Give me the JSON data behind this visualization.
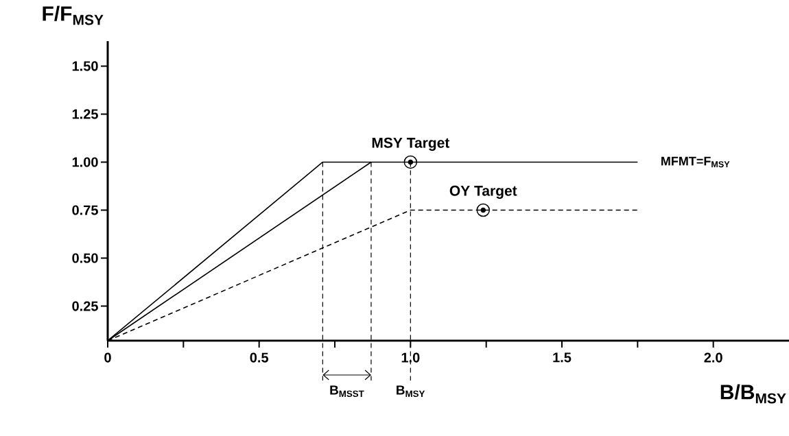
{
  "chart_data": {
    "type": "line",
    "xlabel": "B/B$_{MSY}$",
    "ylabel": "F/F$_{MSY}$",
    "xlim": [
      0,
      2.25
    ],
    "ylim": [
      0.07,
      1.63
    ],
    "xticks": [
      0,
      {
        "value": 0.25,
        "label": null
      },
      0.5,
      {
        "value": 0.75,
        "label": null
      },
      {
        "value": 1.0,
        "label": "1.0"
      },
      {
        "value": 1.25,
        "label": null
      },
      1.5,
      {
        "value": 1.75,
        "label": null
      },
      {
        "value": 2.0,
        "label": "2.0"
      }
    ],
    "yticks": [
      {
        "value": 0.25,
        "label": "0.25"
      },
      {
        "value": 0.5,
        "label": "0.50"
      },
      {
        "value": 0.75,
        "label": "0.75"
      },
      {
        "value": 1.0,
        "label": "1.00"
      },
      {
        "value": 1.25,
        "label": "1.25"
      },
      {
        "value": 1.5,
        "label": "1.50"
      }
    ],
    "series": [
      {
        "type": "line",
        "name": "MFMT=F$_{MSY}$",
        "x": [
          0,
          0.71,
          1.75
        ],
        "values": [
          0.07,
          1.0,
          1.0
        ],
        "color": "#000000",
        "line_style": "solid"
      },
      {
        "type": "line",
        "x": [
          0,
          0.87
        ],
        "values": [
          0.07,
          1.0
        ],
        "color": "#000000",
        "line_style": "solid"
      },
      {
        "type": "line",
        "x": [
          0,
          1.0,
          1.75
        ],
        "values": [
          0.07,
          0.75,
          0.75
        ],
        "color": "#000000",
        "line_style": "dashed"
      },
      {
        "type": "scatter",
        "name": "MSY Target",
        "x": [
          1.0
        ],
        "values": [
          1.0
        ],
        "color": "#000000",
        "marker": "circle"
      },
      {
        "type": "scatter",
        "name": "OY Target",
        "x": [
          1.24
        ],
        "values": [
          0.75
        ],
        "color": "#000000",
        "marker": "circle"
      }
    ],
    "ref_lines": [
      {
        "axis": "x",
        "value": 0.71,
        "line_style": "dashed"
      },
      {
        "axis": "x",
        "value": 0.87,
        "line_style": "dashed"
      },
      {
        "axis": "x",
        "value": 1.0,
        "label": "B$_{MSY}$",
        "line_style": "dashed"
      }
    ],
    "annotations": [
      "B$_{MSST}$"
    ]
  }
}
